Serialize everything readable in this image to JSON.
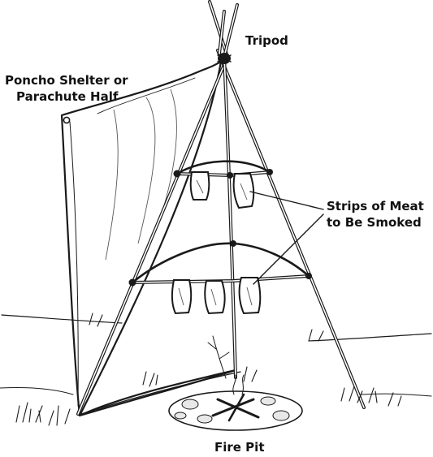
{
  "diagram": {
    "labels": {
      "tripod": "Tripod",
      "poncho_line1": "Poncho Shelter or",
      "poncho_line2": "Parachute Half",
      "meat_line1": "Strips of Meat",
      "meat_line2": "to Be Smoked",
      "fire_pit": "Fire Pit"
    },
    "colors": {
      "ink": "#1a1a1a",
      "background": "#ffffff"
    }
  }
}
